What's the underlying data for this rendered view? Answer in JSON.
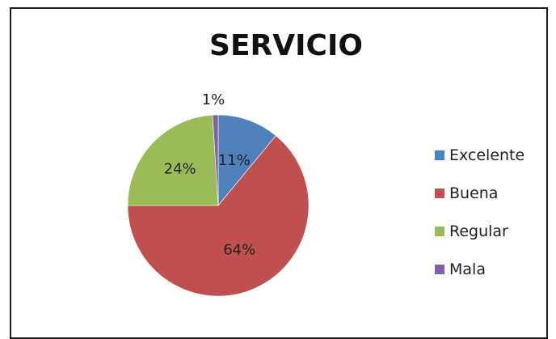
{
  "chart_data": {
    "type": "pie",
    "title": "SERVICIO",
    "categories": [
      "Excelente",
      "Buena",
      "Regular",
      "Mala"
    ],
    "values": [
      11,
      64,
      24,
      1
    ],
    "labels": [
      "11%",
      "64%",
      "24%",
      "1%"
    ],
    "colors": [
      "#4f81bd",
      "#c0504d",
      "#9bbb59",
      "#8064a2"
    ],
    "legend_position": "right"
  }
}
